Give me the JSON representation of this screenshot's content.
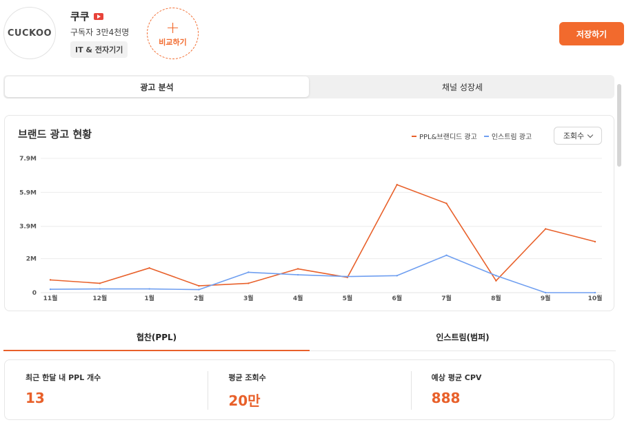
{
  "channel": {
    "logo_text": "CUCKOO",
    "name": "쿠쿠",
    "platform_icon": "youtube-icon",
    "subscribers": "구독자 3만4천명",
    "category": "IT & 전자기기"
  },
  "actions": {
    "compare_plus": "+",
    "compare_label": "비교하기",
    "save_label": "저장하기"
  },
  "tabs": [
    {
      "label": "광고 분석",
      "active": true
    },
    {
      "label": "채널 성장세",
      "active": false
    }
  ],
  "chart_panel": {
    "title": "브랜드 광고 현황",
    "metric_selected": "조회수"
  },
  "chart_data": {
    "type": "line",
    "title": "브랜드 광고 현황",
    "categories": [
      "11월",
      "12월",
      "1월",
      "2월",
      "3월",
      "4월",
      "5월",
      "6월",
      "7월",
      "8월",
      "9월",
      "10월"
    ],
    "y_ticks": [
      {
        "value": 0,
        "label": "0"
      },
      {
        "value": 2.0,
        "label": "2M"
      },
      {
        "value": 3.9,
        "label": "3.9M"
      },
      {
        "value": 5.9,
        "label": "5.9M"
      },
      {
        "value": 7.9,
        "label": "7.9M"
      }
    ],
    "ylim": [
      0,
      7.9
    ],
    "y_unit": "M",
    "grid": true,
    "legend_position": "top-right",
    "series": [
      {
        "name": "PPL&브랜디드 광고",
        "color": "#e8602a",
        "values": [
          0.75,
          0.55,
          1.45,
          0.4,
          0.55,
          1.4,
          0.9,
          6.35,
          5.25,
          0.7,
          3.75,
          3.0
        ]
      },
      {
        "name": "인스트림 광고",
        "color": "#6e9ef0",
        "values": [
          0.2,
          0.22,
          0.22,
          0.18,
          1.2,
          1.05,
          0.95,
          1.0,
          2.2,
          1.0,
          0.0,
          0.0
        ]
      }
    ]
  },
  "sub_tabs": [
    {
      "label": "협찬(PPL)",
      "active": true
    },
    {
      "label": "인스트림(범퍼)",
      "active": false
    }
  ],
  "stats": [
    {
      "label": "최근 한달 내 PPL 개수",
      "value": "13"
    },
    {
      "label": "평균 조회수",
      "value": "20만"
    },
    {
      "label": "예상 평균 CPV",
      "value": "888"
    }
  ],
  "colors": {
    "accent": "#f26a2d",
    "ppl_line": "#e8602a",
    "instream_line": "#6e9ef0"
  }
}
